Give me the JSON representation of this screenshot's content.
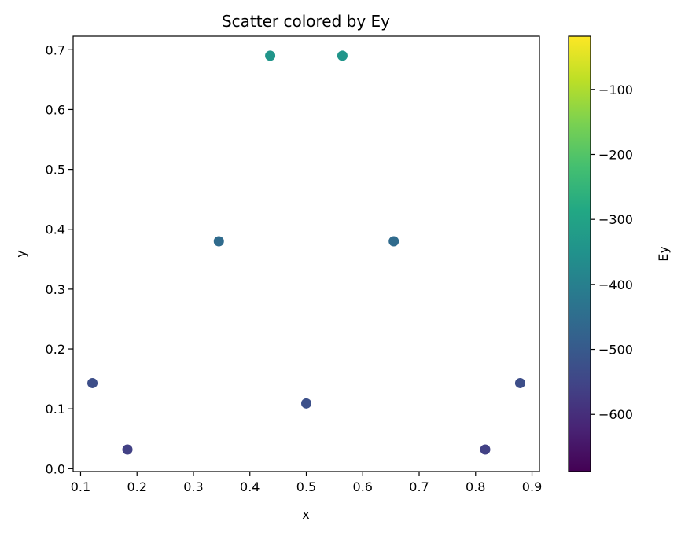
{
  "chart_data": {
    "type": "scatter",
    "title": "Scatter colored by Ey",
    "xlabel": "x",
    "ylabel": "y",
    "xlim": [
      0.0868,
      0.9132
    ],
    "ylim": [
      -0.0048,
      0.7227
    ],
    "xticks": [
      0.1,
      0.2,
      0.3,
      0.4,
      0.5,
      0.6,
      0.7,
      0.8,
      0.9
    ],
    "yticks": [
      0.0,
      0.1,
      0.2,
      0.3,
      0.4,
      0.5,
      0.6,
      0.7
    ],
    "grid": false,
    "colormap": "viridis",
    "points": [
      {
        "x": 0.121,
        "y": 0.143,
        "ey": -530
      },
      {
        "x": 0.183,
        "y": 0.032,
        "ey": -560
      },
      {
        "x": 0.345,
        "y": 0.38,
        "ey": -455
      },
      {
        "x": 0.436,
        "y": 0.69,
        "ey": -340
      },
      {
        "x": 0.5,
        "y": 0.109,
        "ey": -525
      },
      {
        "x": 0.564,
        "y": 0.69,
        "ey": -340
      },
      {
        "x": 0.655,
        "y": 0.38,
        "ey": -455
      },
      {
        "x": 0.817,
        "y": 0.032,
        "ey": -560
      },
      {
        "x": 0.879,
        "y": 0.143,
        "ey": -530
      }
    ],
    "colorbar": {
      "label": "Ey",
      "range": [
        -688,
        -18
      ],
      "ticks": [
        -100,
        -200,
        -300,
        -400,
        -500,
        -600
      ],
      "tick_labels": [
        "−100",
        "−200",
        "−300",
        "−400",
        "−500",
        "−600"
      ]
    }
  }
}
